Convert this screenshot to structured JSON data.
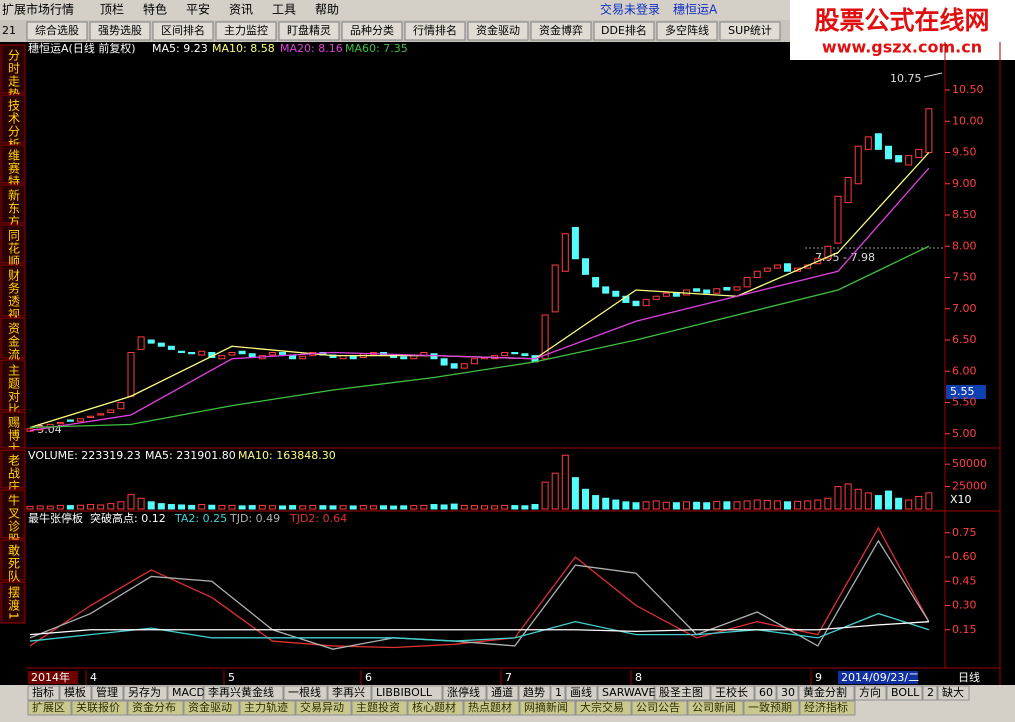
{
  "menu": {
    "items": [
      "扩展市场行情",
      "顶栏",
      "特色",
      "平安",
      "资讯",
      "工具",
      "帮助"
    ],
    "login": "交易未登录",
    "stock": "穗恒运A"
  },
  "watermark": {
    "title": "股票公式在线网",
    "url": "www.gszx.com.cn"
  },
  "toolbar": {
    "code": "21",
    "buttons": [
      "综合选股",
      "强势选股",
      "区间排名",
      "主力监控",
      "盯盘精灵",
      "品种分类",
      "行情排名",
      "资金驱动",
      "资金博弈",
      "DDE排名",
      "多空阵线",
      "SUP统计"
    ]
  },
  "side_tabs": [
    "分时走势",
    "技术分析",
    "维赛特",
    "新东方",
    "同花顺",
    "财务透视",
    "资金流",
    "主题对比",
    "赐博士",
    "老战庄",
    "牛叉诊股",
    "敢死队",
    "摆渡1"
  ],
  "price_chart": {
    "header": [
      "穗恒运A(日线 前复权)",
      "MA5: 9.23",
      "MA10: 8.58",
      "MA20: 8.16",
      "MA60: 7.35"
    ],
    "ylim": [
      4.82,
      11.14
    ],
    "yticks": [
      {
        "value": 5,
        "label": "5.00"
      },
      {
        "value": 5.5,
        "label": "5.50"
      },
      {
        "value": 6,
        "label": "6.00"
      },
      {
        "value": 6.5,
        "label": "6.50"
      },
      {
        "value": 7,
        "label": "7.00"
      },
      {
        "value": 7.5,
        "label": "7.50"
      },
      {
        "value": 8,
        "label": "8.00"
      },
      {
        "value": 8.5,
        "label": "8.50"
      },
      {
        "value": 9,
        "label": "9.00"
      },
      {
        "value": 9.5,
        "label": "9.50"
      },
      {
        "value": 10,
        "label": "10.00"
      },
      {
        "value": 10.5,
        "label": "10.50"
      }
    ],
    "candles": {
      "open": [
        5.04,
        5.06,
        5.1,
        5.16,
        5.22,
        5.2,
        5.26,
        5.3,
        5.34,
        5.4,
        5.6,
        6.35,
        6.5,
        6.45,
        6.4,
        6.32,
        6.3,
        6.26,
        6.3,
        6.2,
        6.26,
        6.32,
        6.28,
        6.2,
        6.26,
        6.3,
        6.26,
        6.2,
        6.25,
        6.3,
        6.26,
        6.2,
        6.25,
        6.22,
        6.27,
        6.3,
        6.25,
        6.23,
        6.2,
        6.25,
        6.28,
        6.2,
        6.12,
        6.05,
        6.12,
        6.2,
        6.2,
        6.25,
        6.3,
        6.28,
        6.25,
        6.2,
        6.95,
        7.6,
        8.3,
        7.8,
        7.5,
        7.35,
        7.28,
        7.2,
        7.12,
        7.05,
        7.15,
        7.2,
        7.26,
        7.22,
        7.32,
        7.3,
        7.25,
        7.34,
        7.3,
        7.35,
        7.5,
        7.6,
        7.65,
        7.72,
        7.6,
        7.65,
        7.72,
        7.8,
        8.05,
        8.7,
        9.0,
        9.55,
        9.8,
        9.6,
        9.45,
        9.3,
        9.42,
        9.5
      ],
      "close": [
        5.08,
        5.12,
        5.15,
        5.18,
        5.2,
        5.24,
        5.28,
        5.32,
        5.38,
        5.5,
        6.3,
        6.55,
        6.45,
        6.4,
        6.35,
        6.3,
        6.28,
        6.32,
        6.22,
        6.25,
        6.3,
        6.28,
        6.22,
        6.25,
        6.3,
        6.27,
        6.2,
        6.24,
        6.3,
        6.26,
        6.22,
        6.25,
        6.2,
        6.28,
        6.3,
        6.26,
        6.22,
        6.2,
        6.25,
        6.3,
        6.2,
        6.1,
        6.05,
        6.12,
        6.2,
        6.22,
        6.25,
        6.3,
        6.28,
        6.25,
        6.15,
        6.9,
        7.7,
        8.2,
        7.8,
        7.55,
        7.35,
        7.25,
        7.2,
        7.1,
        7.05,
        7.15,
        7.2,
        7.25,
        7.2,
        7.3,
        7.28,
        7.25,
        7.32,
        7.3,
        7.35,
        7.5,
        7.6,
        7.65,
        7.7,
        7.6,
        7.65,
        7.7,
        7.8,
        8.0,
        8.8,
        9.1,
        9.6,
        9.75,
        9.55,
        9.4,
        9.35,
        9.45,
        9.55,
        10.2
      ],
      "up_color": "#ff3c3c",
      "down_color": "#54fcfc"
    },
    "series": [
      {
        "name": "MA10",
        "color": "#ffff80",
        "x": [
          0,
          10,
          20,
          30,
          40,
          50,
          60,
          70,
          80,
          89
        ],
        "values": [
          5.1,
          5.6,
          6.4,
          6.25,
          6.25,
          6.2,
          7.3,
          7.2,
          7.9,
          9.5
        ]
      },
      {
        "name": "MA20",
        "color": "#e040e0",
        "x": [
          0,
          10,
          20,
          30,
          40,
          50,
          60,
          70,
          80,
          89
        ],
        "values": [
          5.05,
          5.3,
          6.2,
          6.3,
          6.25,
          6.2,
          6.8,
          7.2,
          7.6,
          9.25
        ]
      },
      {
        "name": "MA60",
        "color": "#40c040",
        "x": [
          0,
          10,
          20,
          30,
          40,
          50,
          60,
          70,
          80,
          89
        ],
        "values": [
          5.1,
          5.15,
          5.45,
          5.7,
          5.9,
          6.15,
          6.5,
          6.9,
          7.3,
          8.0
        ]
      }
    ],
    "annotations": {
      "high": "10.75",
      "range": "7.95 - 7.98",
      "low": "←5.04",
      "current": "5.55"
    }
  },
  "volume_chart": {
    "header": [
      "VOLUME: 223319.23",
      "MA5: 231901.80",
      "MA10: 163848.30"
    ],
    "unit": "X10",
    "ylim": [
      0,
      62500
    ],
    "yticks": [
      25000,
      50000
    ],
    "color_up": "#ff3c3c",
    "color_down": "#54fcfc",
    "values": [
      3000,
      3500,
      3200,
      4000,
      3800,
      4200,
      5000,
      4500,
      6000,
      8000,
      16000,
      12000,
      8000,
      6000,
      5000,
      4500,
      4000,
      5000,
      4200,
      3800,
      4000,
      3500,
      3800,
      4000,
      3600,
      3400,
      3800,
      3500,
      4000,
      3700,
      3500,
      3600,
      3400,
      3800,
      3500,
      3600,
      3300,
      3500,
      3800,
      4000,
      5000,
      4500,
      5500,
      4000,
      3800,
      3600,
      3500,
      4000,
      3800,
      3600,
      5000,
      30000,
      40000,
      60000,
      35000,
      22000,
      15000,
      12000,
      10000,
      8000,
      7000,
      8000,
      9000,
      7500,
      7000,
      8000,
      7500,
      7000,
      8500,
      8000,
      8000,
      9000,
      10000,
      9500,
      9000,
      8000,
      8500,
      9000,
      10000,
      12000,
      25000,
      28000,
      22000,
      18000,
      15000,
      20000,
      12000,
      10000,
      14000,
      18000
    ]
  },
  "indicator_chart": {
    "header": [
      "最牛张停板",
      "突破高点: 0.12",
      "TA2: 0.25",
      "TJD: 0.49",
      "TJD2: 0.64"
    ],
    "ylim": [
      0,
      0.86
    ],
    "yticks": [
      0.15,
      {
        "value": 0.3,
        "label": "0.30"
      },
      0.45,
      {
        "value": 0.6,
        "label": "0.60"
      },
      0.75
    ],
    "x": [
      0,
      6,
      12,
      18,
      24,
      30,
      36,
      42,
      48,
      54,
      60,
      66,
      72,
      78,
      84,
      89
    ],
    "series": [
      {
        "name": "TJD2",
        "color": "#e03030",
        "values": [
          0.05,
          0.3,
          0.52,
          0.35,
          0.08,
          0.05,
          0.04,
          0.06,
          0.1,
          0.6,
          0.3,
          0.1,
          0.2,
          0.12,
          0.78,
          0.2
        ]
      },
      {
        "name": "TJD",
        "color": "#b0b0b0",
        "values": [
          0.1,
          0.25,
          0.48,
          0.45,
          0.15,
          0.03,
          0.1,
          0.08,
          0.05,
          0.55,
          0.5,
          0.12,
          0.26,
          0.05,
          0.7,
          0.2
        ]
      },
      {
        "name": "TA2",
        "color": "#40d0d0",
        "values": [
          0.08,
          0.12,
          0.16,
          0.1,
          0.1,
          0.1,
          0.1,
          0.08,
          0.1,
          0.2,
          0.12,
          0.12,
          0.15,
          0.1,
          0.25,
          0.15
        ]
      },
      {
        "name": "突破高点",
        "color": "#ffffff",
        "values": [
          0.12,
          0.15,
          0.15,
          0.15,
          0.15,
          0.15,
          0.15,
          0.15,
          0.15,
          0.15,
          0.14,
          0.15,
          0.15,
          0.15,
          0.18,
          0.2
        ]
      }
    ]
  },
  "date_axis": {
    "year": "2014年",
    "months": [
      "4",
      "5",
      "6",
      "7",
      "8",
      "9"
    ],
    "cursor_date": "2014/09/23/二",
    "period": "日线"
  },
  "bottom_tabs": [
    "指标",
    "模板",
    "管理",
    "另存为",
    "MACD",
    "李再兴黄金线",
    "一根线",
    "李再兴",
    "LIBBIBOLL",
    "涨停线",
    "通道",
    "趋势",
    "1",
    "画线",
    "SARWAVE",
    "股圣主图",
    "王校长",
    "60",
    "30",
    "黄金分割",
    "方向",
    "BOLL",
    "2",
    "缺大"
  ],
  "extension_tabs": [
    "扩展区",
    "关联报价",
    "资金分布",
    "资金驱动",
    "主力轨迹",
    "交易异动",
    "主题投资",
    "核心题材",
    "热点题材",
    "网摘新闻",
    "大宗交易",
    "公司公告",
    "公司新闻",
    "一致预期",
    "经济指标"
  ]
}
